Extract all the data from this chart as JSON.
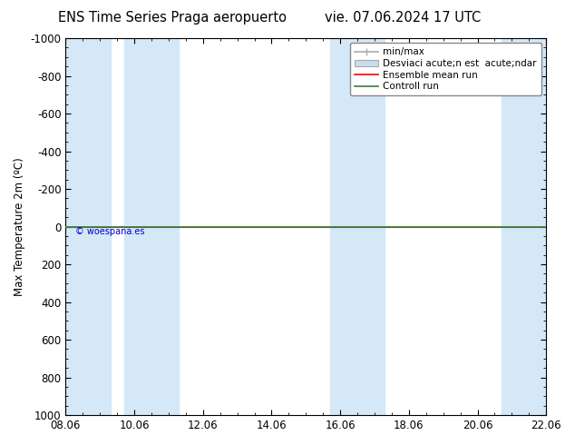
{
  "title_left": "ENS Time Series Praga aeropuerto",
  "title_right": "vie. 07.06.2024 17 UTC",
  "ylabel": "Max Temperature 2m (ºC)",
  "copyright": "© woespana.es",
  "ylim_bottom": -1000,
  "ylim_top": 1000,
  "yticks": [
    -1000,
    -800,
    -600,
    -400,
    -200,
    0,
    200,
    400,
    600,
    800,
    1000
  ],
  "xlim": [
    0,
    14
  ],
  "x_tick_positions": [
    0,
    2,
    4,
    6,
    8,
    10,
    12,
    14
  ],
  "x_tick_labels": [
    "08.06",
    "10.06",
    "12.06",
    "14.06",
    "16.06",
    "18.06",
    "20.06",
    "22.06"
  ],
  "blue_bands": [
    [
      0.0,
      1.3
    ],
    [
      1.7,
      3.3
    ],
    [
      7.7,
      9.3
    ],
    [
      12.7,
      14.0
    ]
  ],
  "line_y": 0,
  "ensemble_color": "#ff0000",
  "control_color": "#3a7d3a",
  "minmax_color": "#aaaaaa",
  "std_color": "#c8ddf0",
  "band_color": "#d4e8f8",
  "background_color": "#ffffff",
  "title_fontsize": 10.5,
  "axis_fontsize": 8.5,
  "legend_fontsize": 7.5,
  "legend_label_minmax": "min/max",
  "legend_label_std": "Desviaci acute;n est  acute;ndar",
  "legend_label_ensemble": "Ensemble mean run",
  "legend_label_control": "Controll run"
}
